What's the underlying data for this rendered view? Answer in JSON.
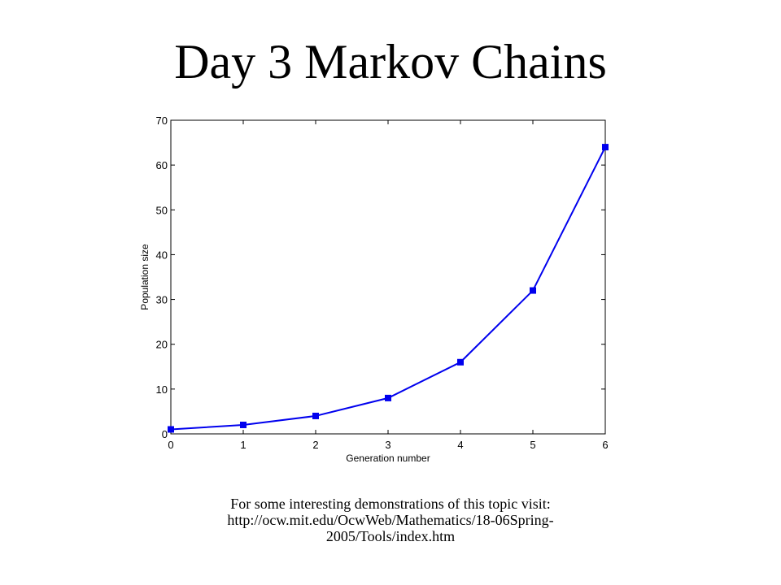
{
  "slide": {
    "title": "Day 3 Markov Chains",
    "caption_line1": "For some interesting demonstrations of this topic visit:",
    "caption_line2": "http://ocw.mit.edu/OcwWeb/Mathematics/18-06Spring-",
    "caption_line3": "2005/Tools/index.htm"
  },
  "chart_data": {
    "type": "line",
    "title": "",
    "xlabel": "Generation number",
    "ylabel": "Population size",
    "x": [
      0,
      1,
      2,
      3,
      4,
      5,
      6
    ],
    "series": [
      {
        "values": [
          1,
          2,
          4,
          8,
          16,
          32,
          64
        ],
        "color": "#0000ee",
        "marker": "square"
      }
    ],
    "xlim": [
      0,
      6
    ],
    "ylim": [
      0,
      70
    ],
    "xticks": [
      0,
      1,
      2,
      3,
      4,
      5,
      6
    ],
    "yticks": [
      0,
      10,
      20,
      30,
      40,
      50,
      60,
      70
    ],
    "grid": false
  }
}
